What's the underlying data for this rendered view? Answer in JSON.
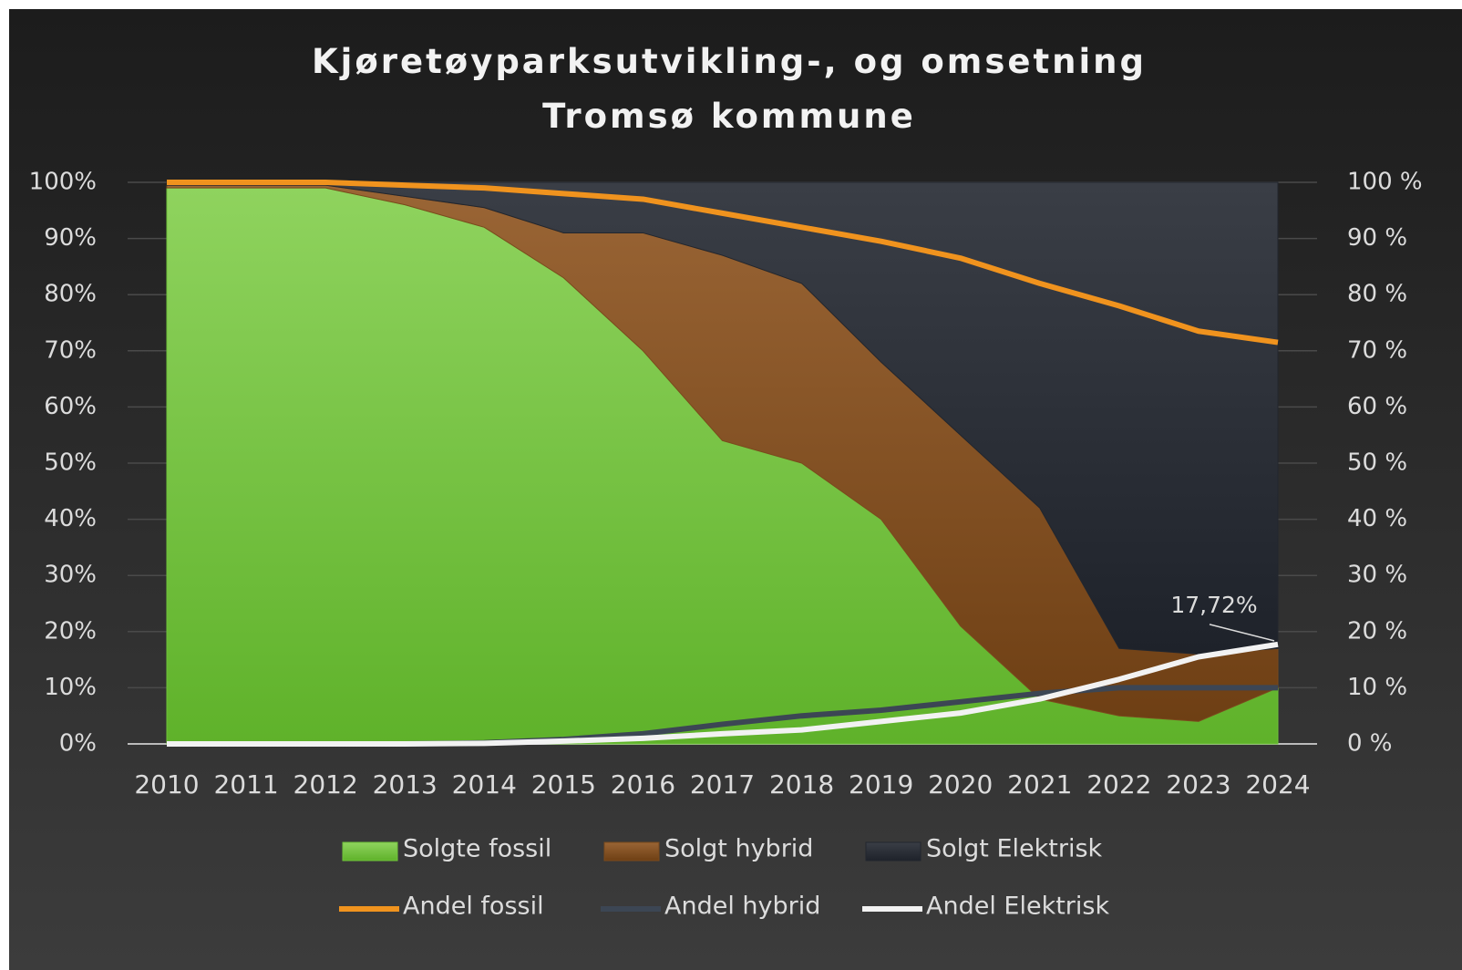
{
  "chart_data": {
    "type": "area",
    "stacked": true,
    "title": "Kjøretøyparksutvikling-, og omsetning Tromsø kommune",
    "categories": [
      "2010",
      "2011",
      "2012",
      "2013",
      "2014",
      "2015",
      "2016",
      "2017",
      "2018",
      "2019",
      "2020",
      "2021",
      "2022",
      "2023",
      "2024"
    ],
    "series": [
      {
        "name": "Solgte fossil",
        "color": "#6fc23a",
        "values": [
          99,
          99,
          99,
          96,
          92,
          83,
          70,
          54,
          50,
          40,
          21,
          8,
          5,
          4,
          10
        ]
      },
      {
        "name": "Solgt hybrid",
        "color": "#7a4a1c",
        "values": [
          0.5,
          0.5,
          0.5,
          1.5,
          3.5,
          8,
          21,
          33,
          32,
          28,
          34,
          34,
          12,
          12,
          7
        ]
      },
      {
        "name": "Solgt Elektrisk",
        "color": "#22262e",
        "values": [
          0.5,
          0.5,
          0.5,
          2.5,
          4.5,
          9,
          9,
          13,
          18,
          32,
          45,
          58,
          83,
          84,
          83
        ]
      },
      {
        "name": "Andel fossil",
        "type": "line",
        "axis": "y2",
        "color": "#f0931e",
        "values": [
          100,
          100,
          100,
          99.5,
          99,
          98,
          97,
          94.5,
          92,
          89.5,
          86.5,
          82,
          78,
          73.5,
          71.5
        ]
      },
      {
        "name": "Andel hybrid",
        "type": "line",
        "axis": "y2",
        "color": "#3c4654",
        "values": [
          0,
          0,
          0,
          0,
          0.2,
          0.8,
          1.8,
          3.5,
          5,
          6,
          7.5,
          9,
          10,
          10,
          10
        ]
      },
      {
        "name": "Andel Elektrisk",
        "type": "line",
        "axis": "y2",
        "color": "#f2f2f2",
        "values": [
          0,
          0,
          0,
          0,
          0.1,
          0.5,
          1,
          1.8,
          2.5,
          4,
          5.5,
          8,
          11.5,
          15.5,
          17.72
        ],
        "value_labels": [
          null,
          null,
          null,
          null,
          null,
          null,
          null,
          null,
          null,
          null,
          null,
          null,
          null,
          null,
          "17,72%"
        ]
      }
    ],
    "ylim": [
      0,
      100
    ],
    "yticks": [
      {
        "value": 0,
        "label": "0%"
      },
      {
        "value": 10,
        "label": "10%"
      },
      {
        "value": 20,
        "label": "20%"
      },
      {
        "value": 30,
        "label": "30%"
      },
      {
        "value": 40,
        "label": "40%"
      },
      {
        "value": 50,
        "label": "50%"
      },
      {
        "value": 60,
        "label": "60%"
      },
      {
        "value": 70,
        "label": "70%"
      },
      {
        "value": 80,
        "label": "80%"
      },
      {
        "value": 90,
        "label": "90%"
      },
      {
        "value": 100,
        "label": "100%"
      }
    ],
    "y2lim": [
      0,
      100
    ],
    "y2ticks": [
      {
        "value": 0,
        "label": "0 %"
      },
      {
        "value": 10,
        "label": "10 %"
      },
      {
        "value": 20,
        "label": "20 %"
      },
      {
        "value": 30,
        "label": "30 %"
      },
      {
        "value": 40,
        "label": "40 %"
      },
      {
        "value": 50,
        "label": "50 %"
      },
      {
        "value": 60,
        "label": "60 %"
      },
      {
        "value": 70,
        "label": "70 %"
      },
      {
        "value": 80,
        "label": "80 %"
      },
      {
        "value": 90,
        "label": "90 %"
      },
      {
        "value": 100,
        "label": "100 %"
      }
    ],
    "grid": true,
    "legend": "bottom"
  }
}
